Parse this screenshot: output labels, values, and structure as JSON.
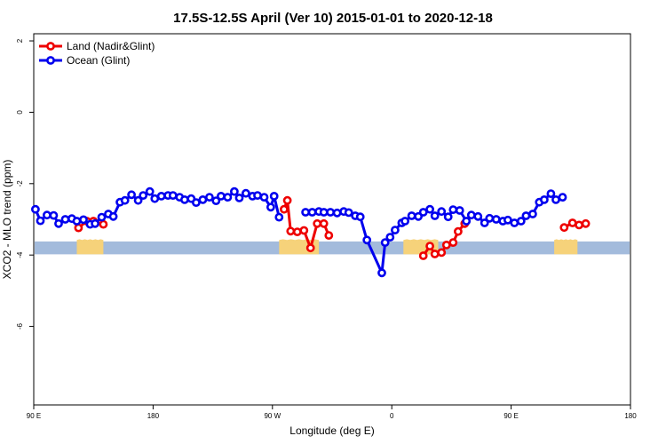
{
  "chart_data": {
    "type": "line",
    "title": "17.5S-12.5S April (Ver 10)   2015-01-01 to 2020-12-18",
    "xlabel": "Longitude (deg E)",
    "ylabel": "XCO2 - MLO trend (ppm)",
    "xlim": [
      90,
      450
    ],
    "ylim": [
      -8.2,
      2.2
    ],
    "x_ticks": [
      90,
      162,
      234,
      306,
      378,
      450
    ],
    "x_tick_labels": [
      "90 E",
      "180",
      "90 W",
      "0",
      "90 E",
      "180"
    ],
    "y_ticks": [
      2,
      0,
      -2,
      -4,
      -6
    ],
    "y_tick_labels": [
      "2",
      "0",
      "-2",
      "-4",
      "-6"
    ],
    "grid": false,
    "legend_position": "top-left",
    "colors": {
      "land": "#ee0000",
      "ocean": "#0000ee",
      "band_ocean": "#a3bbdc",
      "band_land": "#f6d27a"
    },
    "band": {
      "y_range": [
        -3.98,
        -3.62
      ],
      "land_x_ranges": [
        [
          116,
          132
        ],
        [
          238,
          262
        ],
        [
          313,
          334
        ],
        [
          404,
          418
        ]
      ]
    },
    "series": [
      {
        "name": "Land (Nadir&Glint)",
        "segments": [
          [
            [
              117,
              -3.24
            ],
            [
              122,
              -3.05
            ],
            [
              126,
              -3.05
            ],
            [
              132,
              -3.14
            ]
          ],
          [
            [
              241,
              -2.72
            ],
            [
              243,
              -2.47
            ],
            [
              245,
              -3.33
            ],
            [
              249,
              -3.35
            ],
            [
              253,
              -3.31
            ],
            [
              257,
              -3.8
            ],
            [
              261,
              -3.12
            ],
            [
              265,
              -3.12
            ],
            [
              268,
              -3.45
            ]
          ],
          [
            [
              325,
              -4.02
            ],
            [
              329,
              -3.75
            ],
            [
              332,
              -3.97
            ],
            [
              336,
              -3.93
            ],
            [
              339,
              -3.72
            ],
            [
              343,
              -3.65
            ],
            [
              346,
              -3.34
            ],
            [
              350,
              -3.12
            ]
          ],
          [
            [
              410,
              -3.23
            ],
            [
              415,
              -3.1
            ],
            [
              419,
              -3.16
            ],
            [
              423,
              -3.12
            ]
          ]
        ]
      },
      {
        "name": "Ocean (Glint)",
        "segments": [
          [
            [
              91,
              -2.72
            ],
            [
              94,
              -3.04
            ],
            [
              98,
              -2.88
            ],
            [
              102,
              -2.89
            ],
            [
              105,
              -3.12
            ],
            [
              109,
              -3.0
            ],
            [
              113,
              -2.98
            ],
            [
              116,
              -3.05
            ],
            [
              120,
              -3.01
            ],
            [
              124,
              -3.14
            ],
            [
              127,
              -3.12
            ],
            [
              131,
              -2.94
            ],
            [
              135,
              -2.85
            ],
            [
              138,
              -2.92
            ],
            [
              142,
              -2.52
            ],
            [
              145,
              -2.47
            ],
            [
              149,
              -2.31
            ],
            [
              153,
              -2.47
            ],
            [
              156,
              -2.33
            ],
            [
              160,
              -2.22
            ],
            [
              163,
              -2.42
            ],
            [
              167,
              -2.35
            ],
            [
              171,
              -2.33
            ],
            [
              174,
              -2.33
            ],
            [
              178,
              -2.38
            ],
            [
              181,
              -2.45
            ],
            [
              185,
              -2.42
            ],
            [
              188,
              -2.53
            ],
            [
              192,
              -2.45
            ],
            [
              196,
              -2.38
            ],
            [
              200,
              -2.48
            ],
            [
              203,
              -2.35
            ],
            [
              207,
              -2.38
            ],
            [
              211,
              -2.22
            ],
            [
              214,
              -2.4
            ],
            [
              218,
              -2.27
            ],
            [
              222,
              -2.35
            ],
            [
              225,
              -2.33
            ],
            [
              229,
              -2.38
            ],
            [
              233,
              -2.66
            ],
            [
              235,
              -2.35
            ],
            [
              238,
              -2.94
            ]
          ],
          [
            [
              254,
              -2.8
            ],
            [
              258,
              -2.8
            ],
            [
              262,
              -2.78
            ],
            [
              265,
              -2.8
            ],
            [
              269,
              -2.8
            ],
            [
              273,
              -2.82
            ],
            [
              277,
              -2.78
            ],
            [
              280,
              -2.81
            ],
            [
              284,
              -2.9
            ],
            [
              287,
              -2.93
            ],
            [
              291,
              -3.58
            ],
            [
              300,
              -4.5
            ],
            [
              302,
              -3.65
            ],
            [
              305,
              -3.5
            ],
            [
              308,
              -3.3
            ],
            [
              312,
              -3.1
            ],
            [
              314,
              -3.05
            ],
            [
              318,
              -2.9
            ],
            [
              322,
              -2.92
            ],
            [
              325,
              -2.8
            ],
            [
              329,
              -2.72
            ],
            [
              332,
              -2.9
            ],
            [
              336,
              -2.78
            ],
            [
              340,
              -2.93
            ],
            [
              343,
              -2.73
            ],
            [
              347,
              -2.75
            ],
            [
              351,
              -3.05
            ],
            [
              354,
              -2.88
            ],
            [
              358,
              -2.92
            ],
            [
              362,
              -3.1
            ],
            [
              365,
              -2.97
            ],
            [
              369,
              -3.0
            ],
            [
              373,
              -3.05
            ],
            [
              376,
              -3.02
            ],
            [
              380,
              -3.1
            ],
            [
              384,
              -3.05
            ],
            [
              387,
              -2.9
            ],
            [
              391,
              -2.85
            ],
            [
              395,
              -2.52
            ],
            [
              398,
              -2.45
            ],
            [
              402,
              -2.28
            ],
            [
              405,
              -2.45
            ],
            [
              409,
              -2.38
            ]
          ]
        ]
      }
    ]
  }
}
